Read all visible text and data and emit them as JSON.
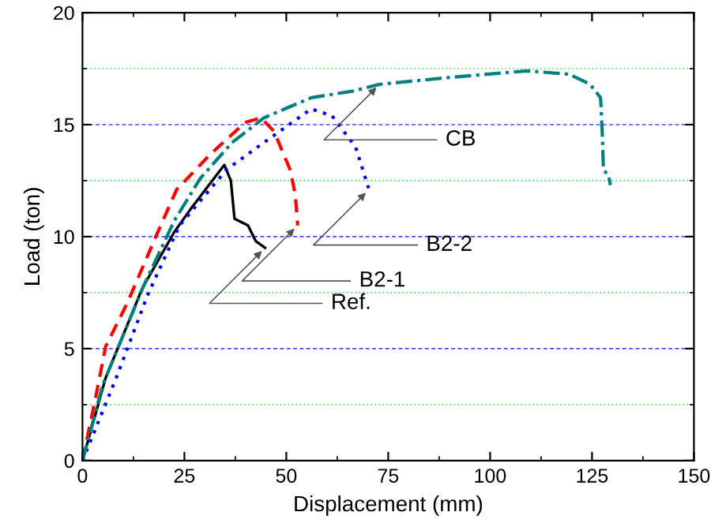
{
  "chart_data": {
    "type": "line",
    "xlabel": "Displacement (mm)",
    "ylabel": "Load (ton)",
    "xlim": [
      0,
      150
    ],
    "ylim": [
      0,
      20
    ],
    "xticks": [
      0,
      {
        "value": 12.5,
        "label": null
      },
      25,
      {
        "value": 37.5,
        "label": null
      },
      50,
      {
        "value": 62.5,
        "label": null
      },
      75,
      {
        "value": 87.5,
        "label": null
      },
      100,
      {
        "value": 112.5,
        "label": null
      },
      125,
      {
        "value": 137.5,
        "label": null
      },
      150
    ],
    "yticks": [
      0,
      {
        "value": 2.5,
        "label": null
      },
      5,
      {
        "value": 7.5,
        "label": null
      },
      10,
      {
        "value": 12.5,
        "label": null
      },
      15,
      {
        "value": 17.5,
        "label": null
      },
      20
    ],
    "grid": "y",
    "legend": false,
    "series": [
      {
        "color": "#000000",
        "line_style": "solid",
        "x": [
          0,
          5.7,
          14.7,
          22.5,
          26.4,
          34.8,
          36.4,
          37.3,
          40.6,
          42.5,
          44.8
        ],
        "values": [
          0,
          3.7,
          7.7,
          10.2,
          11.2,
          13.2,
          12.5,
          10.8,
          10.5,
          9.8,
          9.5
        ]
      },
      {
        "color": "#ff0000",
        "line_style": "dashed",
        "x": [
          0,
          3.1,
          5.7,
          10.9,
          18,
          23.1,
          31.5,
          39.9,
          43.8,
          47,
          50.9,
          52.2,
          52.8
        ],
        "values": [
          0,
          2.7,
          5.1,
          7.0,
          10.0,
          12.1,
          13.7,
          15.1,
          15.3,
          14.7,
          13.0,
          11.9,
          10.5
        ]
      },
      {
        "color": "#0000ff",
        "line_style": "dotted",
        "x": [
          0,
          8.3,
          16,
          23.8,
          35.4,
          44.5,
          56.1,
          61.2,
          67,
          70.3
        ],
        "values": [
          0,
          3.7,
          7.4,
          10.5,
          13.0,
          14.2,
          15.7,
          15.4,
          14.0,
          12.1
        ]
      },
      {
        "color": "#008080",
        "line_style": "dashdot",
        "x": [
          0,
          5,
          15,
          22.5,
          28.9,
          36.7,
          44.5,
          50.9,
          56.1,
          66.4,
          72.9,
          89.7,
          109,
          119.4,
          124.5,
          127.1,
          127.5,
          127.8,
          129.1,
          129.5
        ],
        "values": [
          0,
          3.4,
          7.8,
          10.7,
          12.6,
          14.2,
          15.3,
          15.8,
          16.2,
          16.5,
          16.8,
          17.1,
          17.4,
          17.25,
          16.8,
          16.2,
          14.7,
          13.0,
          12.7,
          12.3
        ]
      }
    ],
    "annotations": [
      {
        "text": "CB",
        "x": 72.9,
        "y": 16.8
      },
      {
        "text": "B2-2",
        "x": 70.3,
        "y": 12.1
      },
      {
        "text": "B2-1",
        "x": 52.8,
        "y": 10.5
      },
      {
        "text": "Ref.",
        "x": 44.8,
        "y": 9.5
      }
    ]
  }
}
